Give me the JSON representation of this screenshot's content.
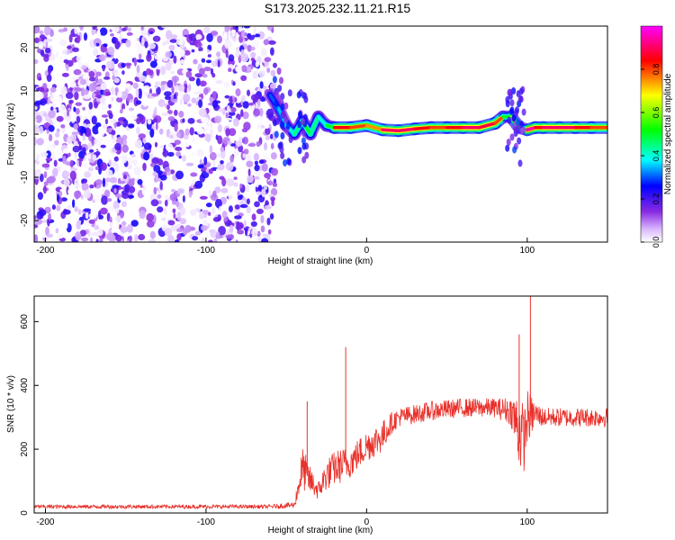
{
  "title": "S173.2025.232.11.21.R15",
  "chart_data": [
    {
      "type": "heatmap",
      "name": "spectrogram",
      "xlabel": "Height of straight line (km)",
      "ylabel": "Frequency (Hz)",
      "xlim": [
        -207,
        150
      ],
      "ylim": [
        -25,
        25
      ],
      "xticks": [
        -200,
        -100,
        0,
        100
      ],
      "yticks": [
        -20,
        -10,
        0,
        10,
        20
      ],
      "colorbar": {
        "label": "Normalized spectral amplitude",
        "range": [
          0.0,
          1.0
        ],
        "ticks": [
          0.0,
          0.2,
          0.4,
          0.6,
          0.8
        ],
        "tick_labels": [
          "0.0",
          "0.2",
          "0.4",
          "0.6",
          "0.8"
        ],
        "colors": [
          "#ffffff",
          "#d9b8ff",
          "#8a2be2",
          "#0000ff",
          "#00ffff",
          "#00ff00",
          "#ffff00",
          "#ff0000",
          "#ff00ff"
        ]
      },
      "noise_region": {
        "x_range": [
          -207,
          -57
        ],
        "amplitude_range": [
          0.0,
          0.25
        ]
      },
      "tone_trace": {
        "x": [
          -60,
          -55,
          -50,
          -45,
          -40,
          -35,
          -30,
          -25,
          -20,
          -10,
          0,
          10,
          20,
          30,
          40,
          50,
          60,
          70,
          80,
          85,
          90,
          95,
          100,
          105,
          110,
          120,
          130,
          140,
          150
        ],
        "freq": [
          9,
          6,
          2,
          0,
          3,
          0,
          4,
          2,
          1.5,
          1.5,
          2,
          1,
          0.8,
          1.2,
          1.5,
          1.5,
          1.5,
          1.5,
          2.5,
          4,
          4,
          1.5,
          1,
          1.5,
          1.5,
          1.5,
          1.5,
          1.5,
          1.5
        ],
        "amplitude": [
          0.3,
          0.35,
          0.4,
          0.45,
          0.5,
          0.45,
          0.4,
          0.5,
          0.85,
          0.8,
          0.75,
          0.9,
          0.9,
          0.85,
          0.8,
          0.85,
          0.9,
          0.88,
          0.8,
          0.5,
          0.6,
          0.5,
          0.95,
          0.85,
          0.9,
          0.9,
          0.85,
          0.8,
          0.75
        ]
      }
    },
    {
      "type": "line",
      "name": "snr",
      "xlabel": "Height of straight line (km)",
      "ylabel": "SNR (10 * v/v)",
      "xlim": [
        -207,
        150
      ],
      "ylim": [
        0,
        680
      ],
      "xticks": [
        -200,
        -100,
        0,
        100
      ],
      "yticks": [
        0,
        200,
        400,
        600
      ],
      "color": "#e8302a",
      "series": [
        {
          "name": "SNR",
          "x": [
            -207,
            -60,
            -45,
            -40,
            -35,
            -30,
            -25,
            -20,
            -15,
            -10,
            0,
            10,
            15,
            20,
            30,
            40,
            50,
            60,
            70,
            80,
            90,
            95,
            98,
            100,
            105,
            110,
            120,
            130,
            140,
            150
          ],
          "mean": [
            20,
            20,
            25,
            140,
            100,
            70,
            120,
            140,
            150,
            160,
            210,
            240,
            280,
            300,
            310,
            320,
            325,
            330,
            330,
            330,
            320,
            260,
            230,
            300,
            310,
            300,
            300,
            300,
            300,
            300
          ],
          "spread": [
            12,
            12,
            20,
            140,
            90,
            60,
            100,
            110,
            110,
            100,
            100,
            100,
            70,
            60,
            60,
            60,
            60,
            60,
            60,
            60,
            90,
            260,
            200,
            180,
            80,
            60,
            60,
            60,
            60,
            60
          ]
        }
      ],
      "spikes": [
        {
          "x": -37,
          "y": 350
        },
        {
          "x": -13,
          "y": 520
        },
        {
          "x": 95,
          "y": 560
        },
        {
          "x": 102,
          "y": 680
        }
      ]
    }
  ]
}
